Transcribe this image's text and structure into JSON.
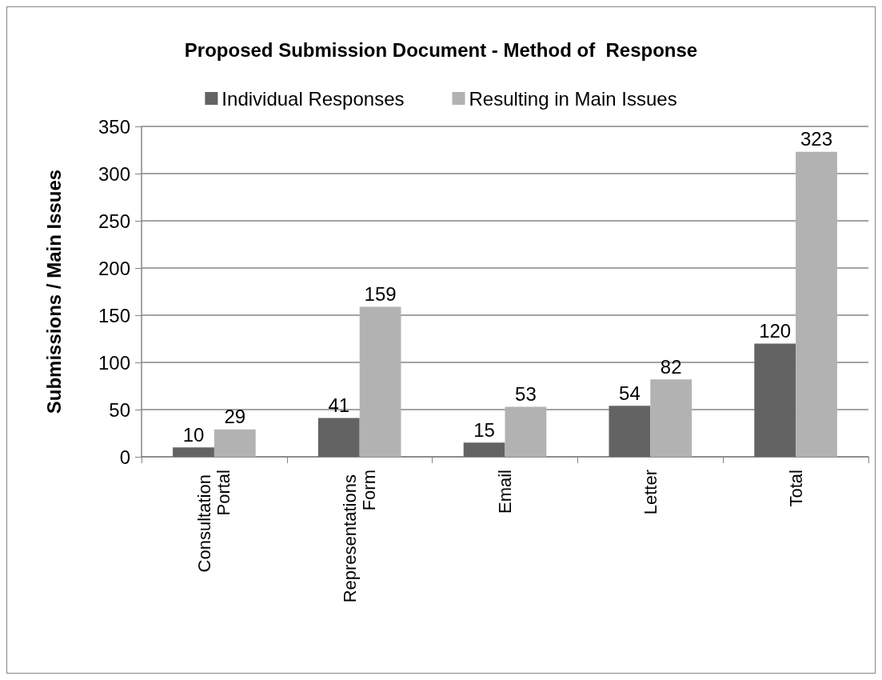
{
  "chart_data": {
    "type": "bar",
    "title": "Proposed Submission Document - Method of  Response",
    "ylabel": "Submissions / Main Issues",
    "categories": [
      "Consultation Portal",
      "Representations Form",
      "Email",
      "Letter",
      "Total"
    ],
    "series": [
      {
        "name": "Individual Responses",
        "color": "#636363",
        "values": [
          10,
          41,
          15,
          54,
          120
        ]
      },
      {
        "name": "Resulting in Main Issues",
        "color": "#b2b2b2",
        "values": [
          29,
          159,
          53,
          82,
          323
        ]
      }
    ],
    "ylim": [
      0,
      350
    ],
    "yticks": [
      0,
      50,
      100,
      150,
      200,
      250,
      300,
      350
    ],
    "grid": "y",
    "legend": "top",
    "data_labels": true
  }
}
